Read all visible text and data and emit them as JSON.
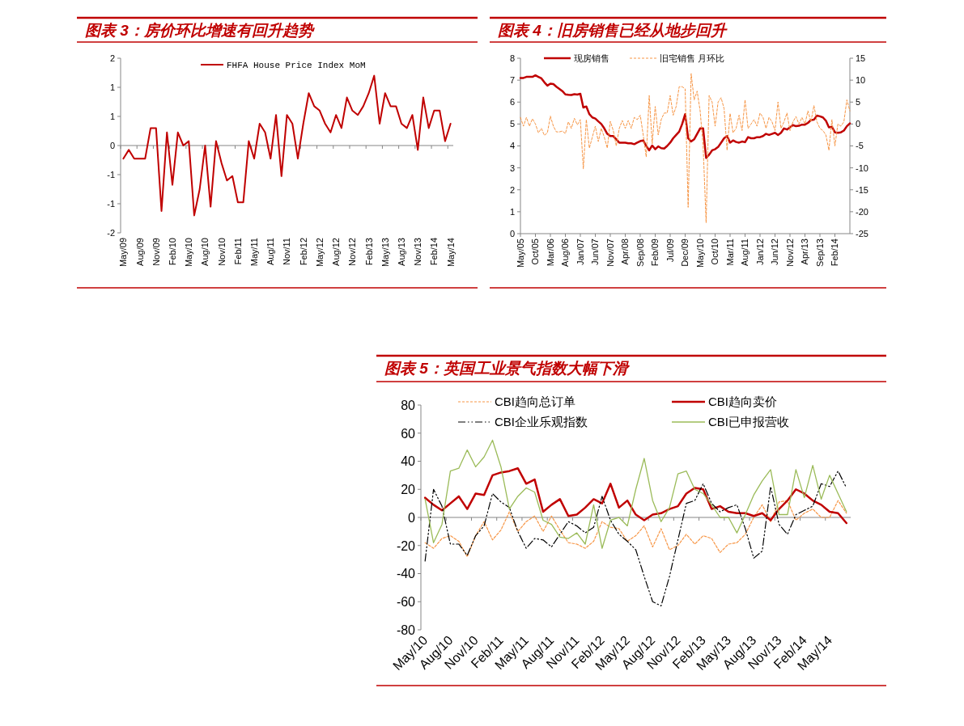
{
  "chart_data": [
    {
      "type": "line",
      "title": "图表 3：房价环比增速有回升趋势",
      "categories": [
        "May/09",
        null,
        null,
        "Aug/09",
        null,
        null,
        "Nov/09",
        null,
        null,
        "Feb/10",
        null,
        null,
        "May/10",
        null,
        null,
        "Aug/10",
        null,
        null,
        "Nov/10",
        null,
        null,
        "Feb/11",
        null,
        null,
        "May/11",
        null,
        null,
        "Aug/11",
        null,
        null,
        "Nov/11",
        null,
        null,
        "Feb/12",
        null,
        null,
        "May/12",
        null,
        null,
        "Aug/12",
        null,
        null,
        "Nov/12",
        null,
        null,
        "Feb/13",
        null,
        null,
        "May/13",
        null,
        null,
        "Aug/13",
        null,
        null,
        "Nov/13",
        null,
        null,
        "Feb/14",
        null,
        null,
        "May/14"
      ],
      "series": [
        {
          "name": "FHFA House Price Index MoM",
          "color": "#c00000",
          "values": [
            -0.3,
            -0.1,
            -0.3,
            -0.3,
            -0.3,
            0.4,
            0.4,
            -1.5,
            0.3,
            -0.9,
            0.3,
            0,
            0.1,
            -1.6,
            -1,
            0,
            -1.4,
            0.1,
            -0.4,
            -0.8,
            -0.7,
            -1.3,
            -1.3,
            0.1,
            -0.3,
            0.5,
            0.3,
            -0.3,
            0.7,
            -0.7,
            0.7,
            0.5,
            -0.3,
            0.5,
            1.2,
            0.9,
            0.8,
            0.5,
            0.3,
            0.7,
            0.4,
            1.1,
            0.8,
            0.7,
            0.9,
            1.2,
            1.6,
            0.5,
            1.2,
            0.9,
            0.9,
            0.5,
            0.4,
            0.7,
            -0.1,
            1.1,
            0.4,
            0.8,
            0.8,
            0.1,
            0.5
          ]
        }
      ],
      "ylim": [
        -2,
        2
      ],
      "yticks": [
        -2,
        {
          "value": -1.3333,
          "label": "-1"
        },
        {
          "value": -0.6667,
          "label": "-1"
        },
        0,
        {
          "value": 0.6667,
          "label": "1"
        },
        {
          "value": 1.3333,
          "label": "1"
        },
        2
      ],
      "legend": "top"
    },
    {
      "type": "line",
      "title": "图表 4：旧房销售已经从地步回升",
      "categories": [
        "May/05",
        null,
        null,
        null,
        null,
        "Oct/05",
        null,
        null,
        null,
        null,
        "Mar/06",
        null,
        null,
        null,
        null,
        "Aug/06",
        null,
        null,
        null,
        null,
        "Jan/07",
        null,
        null,
        null,
        null,
        "Jun/07",
        null,
        null,
        null,
        null,
        "Nov/07",
        null,
        null,
        null,
        null,
        "Apr/08",
        null,
        null,
        null,
        null,
        "Sep/08",
        null,
        null,
        null,
        null,
        "Feb/09",
        null,
        null,
        null,
        null,
        "Jul/09",
        null,
        null,
        null,
        null,
        "Dec/09",
        null,
        null,
        null,
        null,
        "May/10",
        null,
        null,
        null,
        null,
        "Oct/10",
        null,
        null,
        null,
        null,
        "Mar/11",
        null,
        null,
        null,
        null,
        "Aug/11",
        null,
        null,
        null,
        null,
        "Jan/12",
        null,
        null,
        null,
        null,
        "Jun/12",
        null,
        null,
        null,
        null,
        "Nov/12",
        null,
        null,
        null,
        null,
        "Apr/13",
        null,
        null,
        null,
        null,
        "Sep/13",
        null,
        null,
        null,
        null,
        "Feb/14",
        null,
        null,
        null,
        null,
        null
      ],
      "series": [
        {
          "name": "现房销售",
          "color": "#c00000",
          "values": [
            7.1,
            7.1,
            7.15,
            7.15,
            7.15,
            7.22,
            7.15,
            7.08,
            6.9,
            6.75,
            6.84,
            6.82,
            6.7,
            6.6,
            6.5,
            6.35,
            6.33,
            6.32,
            6.36,
            6.34,
            6.38,
            5.75,
            5.8,
            5.45,
            5.3,
            5.25,
            5.12,
            5.0,
            4.8,
            4.55,
            4.45,
            4.45,
            4.3,
            4.15,
            4.15,
            4.15,
            4.12,
            4.12,
            4.08,
            4.15,
            4.22,
            4.25,
            4.0,
            3.8,
            4.02,
            3.85,
            3.98,
            3.9,
            3.88,
            4.0,
            4.15,
            4.35,
            4.5,
            4.65,
            5.0,
            5.45,
            4.35,
            4.2,
            4.3,
            4.55,
            4.8,
            4.8,
            3.45,
            3.6,
            3.8,
            3.85,
            3.95,
            4.15,
            4.35,
            4.45,
            4.15,
            4.25,
            4.18,
            4.15,
            4.2,
            4.17,
            4.4,
            4.35,
            4.35,
            4.4,
            4.4,
            4.45,
            4.55,
            4.5,
            4.55,
            4.6,
            4.5,
            4.6,
            4.8,
            4.75,
            4.85,
            4.95,
            4.9,
            4.92,
            4.97,
            4.97,
            5.05,
            5.18,
            5.2,
            5.38,
            5.35,
            5.3,
            5.15,
            4.85,
            4.87,
            4.62,
            4.6,
            4.62,
            4.7,
            4.9,
            5.03
          ]
        },
        {
          "name": "旧宅销售 月环比",
          "color": "#f79646",
          "axis": "y2",
          "line_style": "dashed",
          "values": [
            1.5,
            -0.5,
            1.5,
            -0.5,
            1.2,
            0,
            -2,
            -1,
            -2.6,
            -2,
            1.8,
            -0.5,
            -1.8,
            -1.8,
            -1.6,
            -2.2,
            0.5,
            -1,
            1.3,
            -0.2,
            1,
            -10.2,
            1,
            -5.5,
            -3,
            -0.5,
            -4,
            -1,
            -3,
            -5.5,
            0.6,
            -1.5,
            -5,
            -1,
            0.8,
            -1,
            0.8,
            -1,
            1.5,
            1,
            2,
            -2.5,
            -7.5,
            6.5,
            -4.5,
            4,
            -2.5,
            1,
            2.5,
            2.5,
            6.5,
            2,
            4,
            8.5,
            8.5,
            8,
            -19,
            11.5,
            5.5,
            7.5,
            3,
            -5,
            -22.5,
            6.5,
            5,
            -0.5,
            5,
            6,
            3.5,
            -6,
            2.4,
            -2,
            -1,
            2,
            -1.5,
            5.5,
            -1,
            0,
            1,
            -0.5,
            2.5,
            1.5,
            -1,
            1.5,
            0.5,
            -1.5,
            5,
            -1,
            0.5,
            2.5,
            -1.5,
            0.5,
            1.7,
            0,
            1.5,
            0,
            3,
            0.5,
            4.2,
            0.5,
            -1,
            -1.5,
            -2.5,
            -6,
            1,
            -5,
            0,
            -0.5,
            0.5,
            5.5,
            3
          ]
        }
      ],
      "ylim": [
        0,
        8
      ],
      "yticks": [
        0,
        1,
        2,
        3,
        4,
        5,
        6,
        7,
        8
      ],
      "y2lim": [
        -25,
        15
      ],
      "y2ticks": [
        -25,
        -20,
        -15,
        -10,
        -5,
        0,
        5,
        10,
        15
      ],
      "legend": "top"
    },
    {
      "type": "line",
      "title": "图表 5：英国工业景气指数大幅下滑",
      "categories": [
        "May/10",
        null,
        null,
        "Aug/10",
        null,
        null,
        "Nov/10",
        null,
        null,
        "Feb/11",
        null,
        null,
        "May/11",
        null,
        null,
        "Aug/11",
        null,
        null,
        "Nov/11",
        null,
        null,
        "Feb/12",
        null,
        null,
        "May/12",
        null,
        null,
        "Aug/12",
        null,
        null,
        "Nov/12",
        null,
        null,
        "Feb/13",
        null,
        null,
        "May/13",
        null,
        null,
        "Aug/13",
        null,
        null,
        "Nov/13",
        null,
        null,
        "Feb/14",
        null,
        null,
        "May/14",
        null,
        null
      ],
      "series": [
        {
          "name": "CBI趋向总订单",
          "color": "#f79646",
          "line_style": "dashed",
          "values": [
            -18,
            -22,
            -15,
            -13,
            -17,
            -28,
            -13,
            -3,
            -16,
            -9,
            4,
            -10,
            -3,
            1,
            -10,
            1,
            -9,
            -18,
            -19,
            -22,
            -17,
            -3,
            -7,
            -8,
            -17,
            -13,
            -6,
            -21,
            -8,
            -23,
            -20,
            -12,
            -19,
            -13,
            -15,
            -25,
            -19,
            -18,
            -12,
            0,
            9,
            -3,
            11,
            12,
            -2,
            3,
            6,
            0,
            0,
            12,
            3
          ]
        },
        {
          "name": "CBI趋向卖价",
          "color": "#c00000",
          "values": [
            14,
            9,
            5,
            10,
            15,
            6,
            17,
            16,
            30,
            32,
            33,
            35,
            24,
            27,
            4,
            9,
            13,
            1,
            2,
            7,
            13,
            10,
            24,
            7,
            12,
            2,
            -2,
            2,
            3,
            6,
            8,
            17,
            21,
            20,
            6,
            8,
            4,
            3,
            3,
            1,
            3,
            -2,
            6,
            12,
            20,
            17,
            12,
            9,
            4,
            3,
            -4
          ]
        },
        {
          "name": "CBI企业乐观指数",
          "color": "#000000",
          "line_style": "dashdot",
          "values": [
            -31,
            20,
            8,
            -19,
            -19,
            -27,
            -13,
            -6,
            17,
            11,
            7,
            -10,
            -22,
            -15,
            -16,
            -21,
            -12,
            -3,
            -6,
            -11,
            -7,
            15,
            -2,
            -12,
            -17,
            -23,
            -42,
            -60,
            -63,
            -42,
            -16,
            10,
            12,
            24,
            10,
            4,
            7,
            9,
            -8,
            -29,
            -24,
            22,
            -5,
            -12,
            2,
            5,
            8,
            24,
            22,
            33,
            21
          ]
        },
        {
          "name": "CBI已申报营收",
          "color": "#9bbb59",
          "values": [
            13,
            -18,
            -5,
            33,
            35,
            48,
            36,
            43,
            55,
            36,
            6,
            15,
            21,
            18,
            -2,
            -5,
            -14,
            -15,
            -11,
            -19,
            9,
            -22,
            -2,
            0,
            -6,
            20,
            42,
            12,
            -3,
            7,
            31,
            33,
            20,
            17,
            9,
            0,
            0,
            -11,
            2,
            16,
            26,
            34,
            2,
            2,
            34,
            14,
            37,
            13,
            30,
            17,
            4
          ]
        }
      ],
      "ylim": [
        -80,
        80
      ],
      "yticks": [
        -80,
        -60,
        -40,
        -20,
        0,
        20,
        40,
        60,
        80
      ],
      "legend": "top"
    }
  ]
}
